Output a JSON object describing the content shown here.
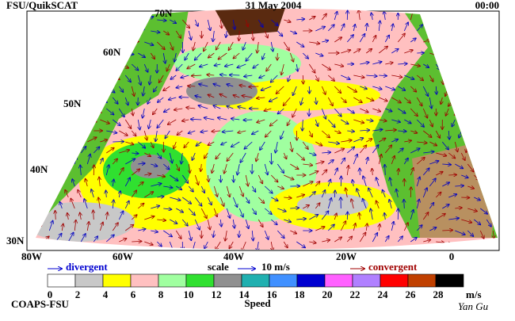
{
  "header": {
    "left": "FSU/QuikSCAT",
    "center": "31 May 2004",
    "right": "00:00"
  },
  "lat_labels": [
    "70N",
    "60N",
    "50N",
    "40N",
    "30N"
  ],
  "lon_labels": [
    "80W",
    "60W",
    "40W",
    "20W",
    "0"
  ],
  "legend": {
    "divergent": "divergent",
    "scale": "scale",
    "scale_value": "10 m/s",
    "convergent": "convergent"
  },
  "colorbar": {
    "title": "Speed",
    "unit": "m/s",
    "ticks": [
      0,
      2,
      4,
      6,
      8,
      10,
      12,
      14,
      16,
      18,
      20,
      22,
      24,
      26,
      28
    ],
    "colors": [
      "#ffffff",
      "#c8c8c8",
      "#ffff00",
      "#ffc0c0",
      "#a0ffa0",
      "#30e030",
      "#909090",
      "#20b0b0",
      "#4090ff",
      "#0000d0",
      "#ff60ff",
      "#b080ff",
      "#ff0000",
      "#c04000",
      "#000000"
    ]
  },
  "footer": {
    "left": "COAPS-FSU",
    "right": "Yan Gu"
  }
}
